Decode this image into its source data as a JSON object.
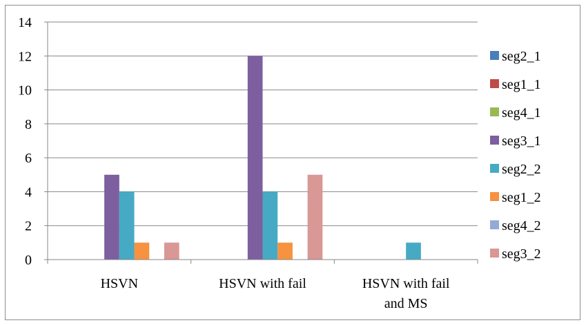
{
  "chart_data": {
    "type": "bar",
    "categories": [
      [
        "HSVN"
      ],
      [
        "HSVN with fail"
      ],
      [
        "HSVN with fail",
        "and MS"
      ]
    ],
    "ylim": [
      0,
      14
    ],
    "yticks": [
      0,
      2,
      4,
      6,
      8,
      10,
      12,
      14
    ],
    "grid": true,
    "legend_position": "right",
    "series": [
      {
        "name": "seg2_1",
        "color": "#4a7ebb",
        "values": [
          0,
          0,
          0
        ]
      },
      {
        "name": "seg1_1",
        "color": "#be4b48",
        "values": [
          0,
          0,
          0
        ]
      },
      {
        "name": "seg4_1",
        "color": "#98b954",
        "values": [
          0,
          0,
          0
        ]
      },
      {
        "name": "seg3_1",
        "color": "#7d5fa0",
        "values": [
          5,
          12,
          0
        ]
      },
      {
        "name": "seg2_2",
        "color": "#46aac5",
        "values": [
          4,
          4,
          1
        ]
      },
      {
        "name": "seg1_2",
        "color": "#f69240",
        "values": [
          1,
          1,
          0
        ]
      },
      {
        "name": "seg4_2",
        "color": "#95a9d6",
        "values": [
          0,
          0,
          0
        ]
      },
      {
        "name": "seg3_2",
        "color": "#d99795",
        "values": [
          1,
          5,
          0
        ]
      }
    ]
  }
}
